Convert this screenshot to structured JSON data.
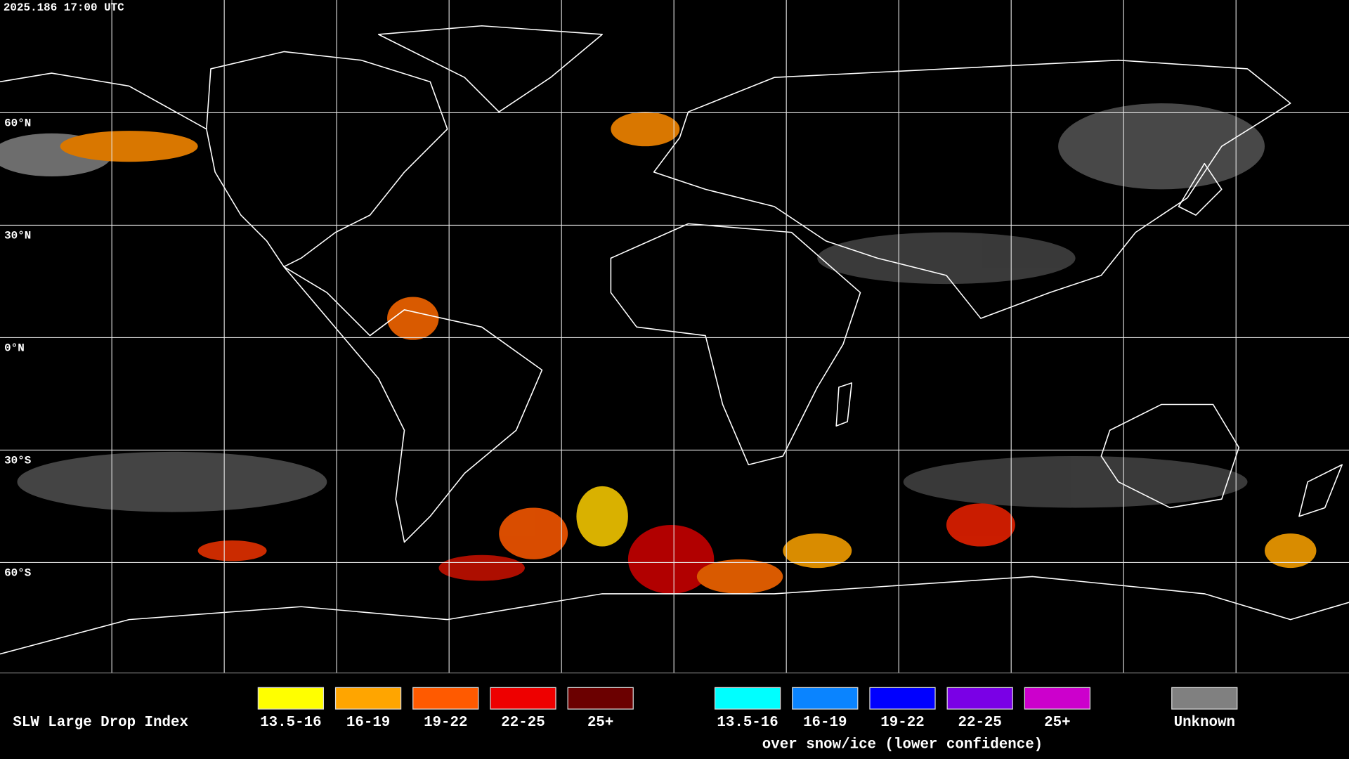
{
  "header": {
    "timestamp": "2025.186 17:00 UTC"
  },
  "map": {
    "lat_labels": [
      "60°N",
      "30°N",
      "0°N",
      "30°S",
      "60°S"
    ]
  },
  "legend": {
    "title": "SLW Large Drop Index",
    "items": [
      {
        "label": "13.5-16",
        "color": "#ffff00"
      },
      {
        "label": "16-19",
        "color": "#ffa500"
      },
      {
        "label": "19-22",
        "color": "#ff5a00"
      },
      {
        "label": "22-25",
        "color": "#ee0000"
      },
      {
        "label": "25+",
        "color": "#6b0000"
      }
    ],
    "snow_items": [
      {
        "label": "13.5-16",
        "color": "#00ffff"
      },
      {
        "label": "16-19",
        "color": "#0a84ff"
      },
      {
        "label": "19-22",
        "color": "#0000ff"
      },
      {
        "label": "22-25",
        "color": "#7a00e6"
      },
      {
        "label": "25+",
        "color": "#cc00cc"
      }
    ],
    "snow_note": "over snow/ice (lower confidence)",
    "unknown": {
      "label": "Unknown",
      "color": "#808080"
    }
  }
}
